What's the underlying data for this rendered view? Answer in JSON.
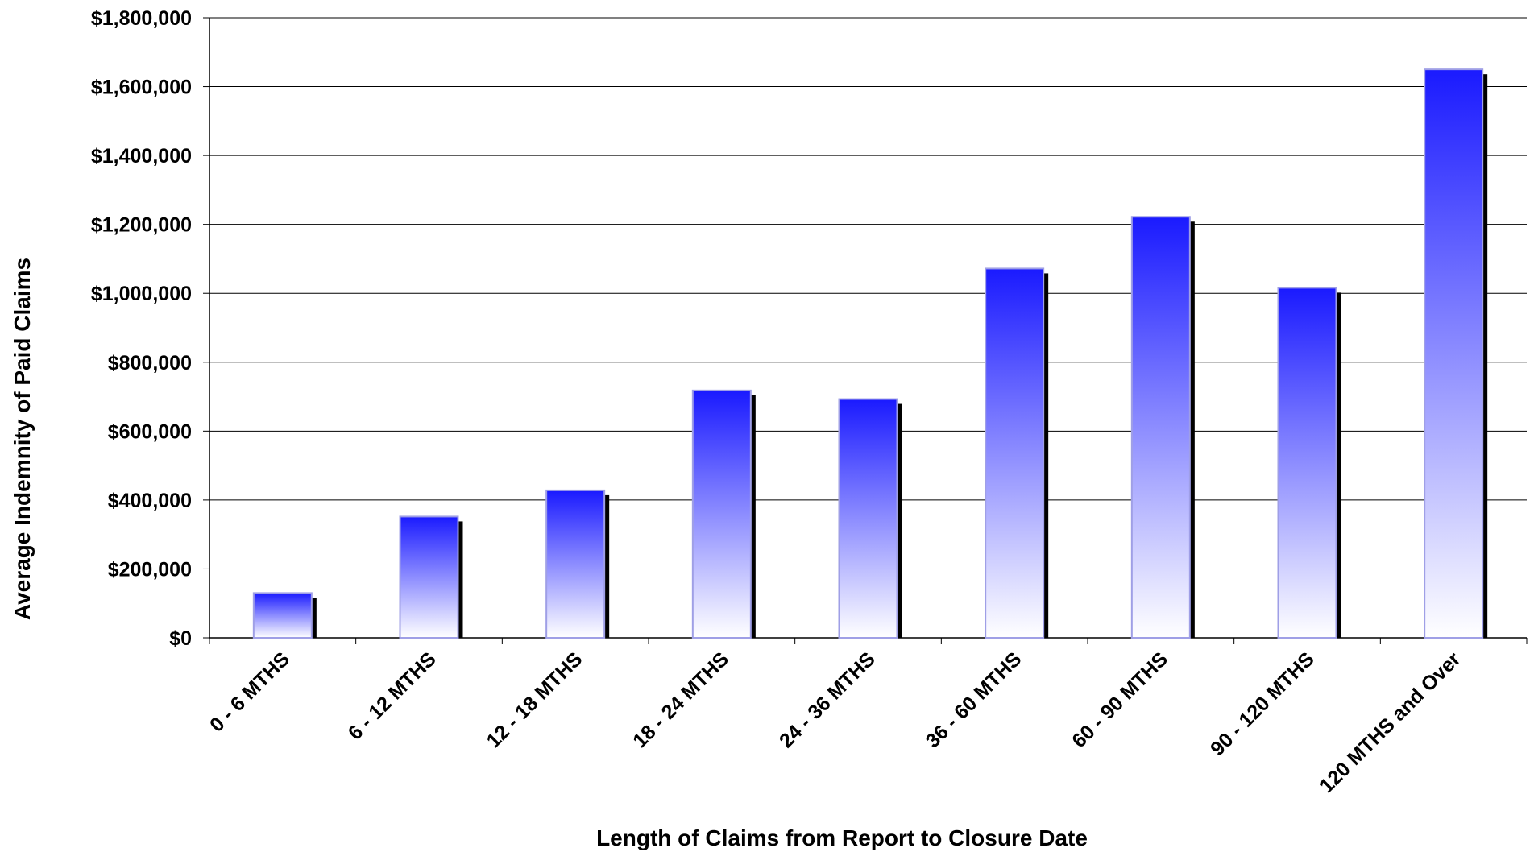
{
  "chart_data": {
    "type": "bar",
    "title": "",
    "xlabel": "Length of Claims from Report to Closure Date",
    "ylabel": "Average Indemnity of Paid Claims",
    "categories": [
      "0 - 6 MTHS",
      "6 - 12 MTHS",
      "12 - 18 MTHS",
      "18 - 24 MTHS",
      "24 - 36 MTHS",
      "36 - 60 MTHS",
      "60 - 90 MTHS",
      "90 - 120 MTHS",
      "120 MTHS and Over"
    ],
    "values": [
      130000,
      352000,
      428000,
      718000,
      693000,
      1072000,
      1222000,
      1016000,
      1650000
    ],
    "ylim": [
      0,
      1800000
    ],
    "yticks": [
      0,
      200000,
      400000,
      600000,
      800000,
      1000000,
      1200000,
      1400000,
      1600000,
      1800000
    ],
    "ytick_labels": [
      "$0",
      "$200,000",
      "$400,000",
      "$600,000",
      "$800,000",
      "$1,000,000",
      "$1,200,000",
      "$1,400,000",
      "$1,600,000",
      "$1,800,000"
    ],
    "grid": true,
    "legend": "none",
    "colors": {
      "bar_top": "#1a1aff",
      "bar_bottom": "#ffffff",
      "bar_outline": "#9f9fe6",
      "bar_shadow": "#000000",
      "grid": "#000000"
    }
  }
}
